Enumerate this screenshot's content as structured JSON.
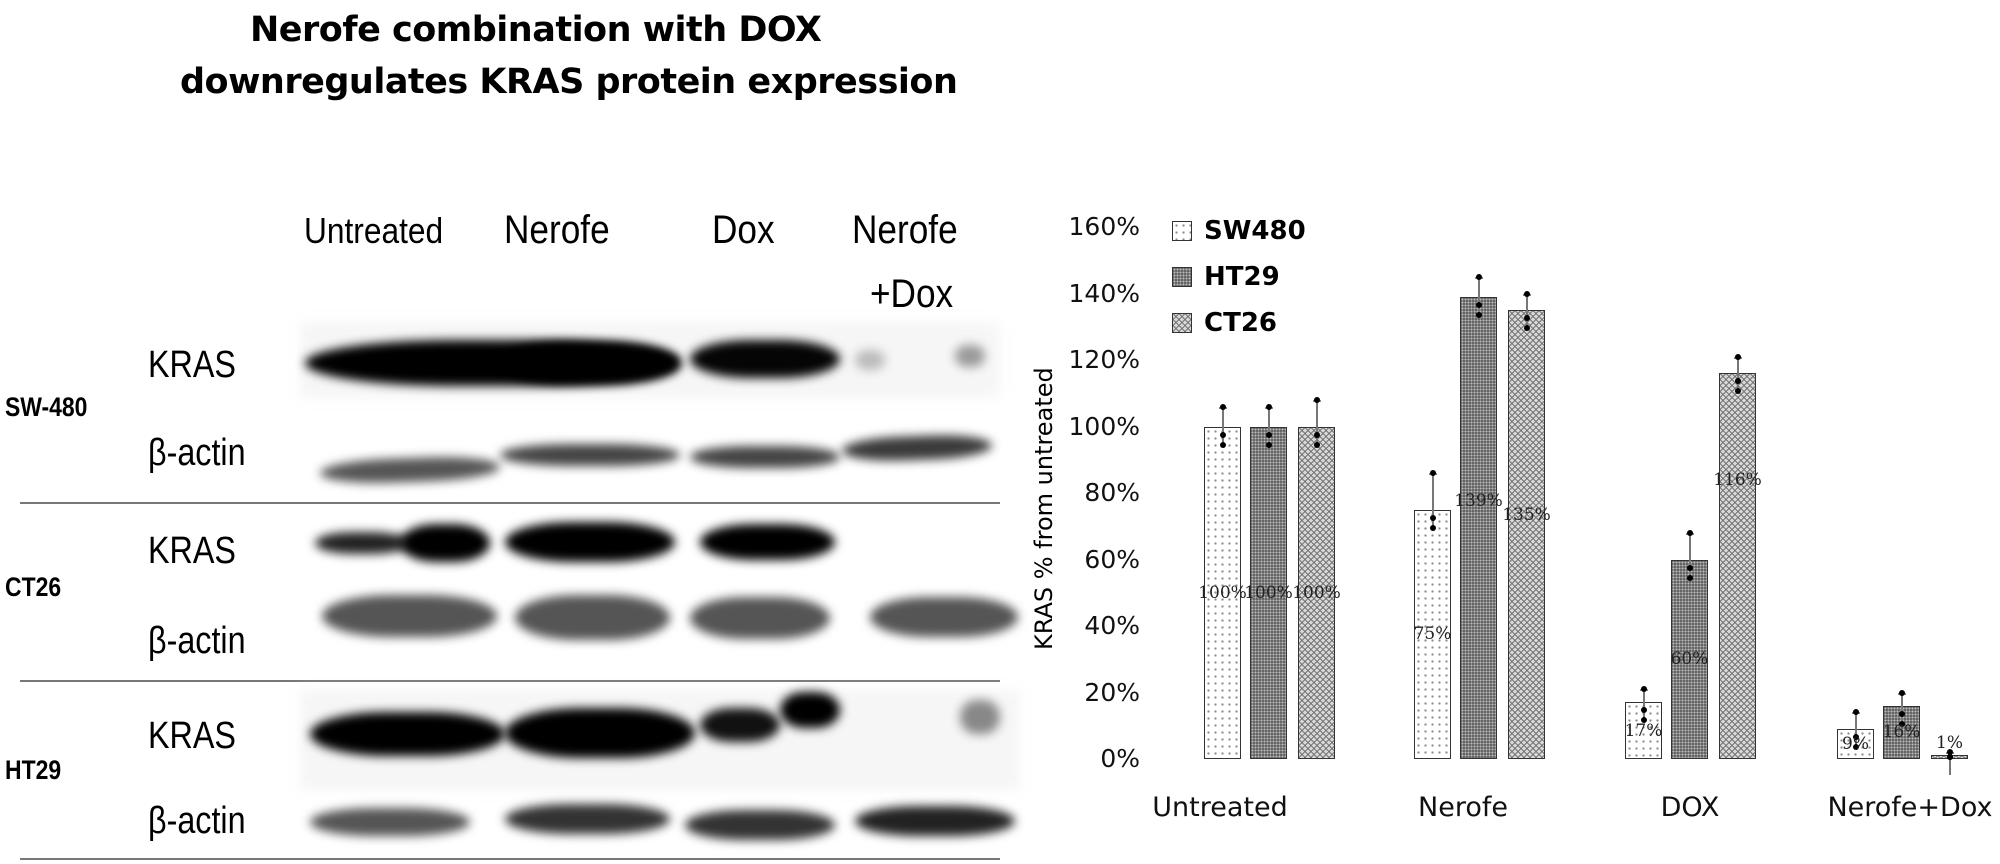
{
  "figure": {
    "title_line1": "Nerofe combination with DOX",
    "title_line2": "downregulates KRAS protein expression"
  },
  "blot": {
    "lanes": [
      "Untreated",
      "Nerofe",
      "Dox",
      "Nerofe",
      "+Dox"
    ],
    "cell_lines": [
      {
        "name": "SW-480",
        "proteins": [
          "KRAS",
          "β-actin"
        ]
      },
      {
        "name": "CT26",
        "proteins": [
          "KRAS",
          "β-actin"
        ]
      },
      {
        "name": "HT29",
        "proteins": [
          "KRAS",
          "β-actin"
        ]
      }
    ]
  },
  "chart_data": {
    "type": "bar",
    "title": "",
    "xlabel": "",
    "ylabel": "KRAS % from untreated",
    "ylim": [
      0,
      160
    ],
    "yticks": [
      "0%",
      "20%",
      "40%",
      "60%",
      "80%",
      "100%",
      "120%",
      "140%",
      "160%"
    ],
    "grid": false,
    "legend_position": "top-left",
    "categories": [
      "Untreated",
      "Nerofe",
      "DOX",
      "Nerofe+Dox"
    ],
    "series": [
      {
        "name": "SW480",
        "values": [
          100,
          75,
          17,
          9
        ],
        "labels": [
          "100%",
          "75%",
          "17%",
          "9%"
        ],
        "pattern": "dots"
      },
      {
        "name": "HT29",
        "values": [
          100,
          139,
          60,
          16
        ],
        "labels": [
          "100%",
          "139%",
          "60%",
          "16%"
        ],
        "pattern": "dark-checker"
      },
      {
        "name": "CT26",
        "values": [
          100,
          135,
          116,
          1
        ],
        "labels": [
          "100%",
          "135%",
          "116%",
          "1%"
        ],
        "pattern": "zigzag"
      }
    ],
    "error_bar_tops": {
      "SW480": [
        106,
        86,
        21,
        14
      ],
      "HT29": [
        106,
        145,
        68,
        20
      ],
      "CT26": [
        108,
        140,
        121,
        2
      ]
    }
  }
}
